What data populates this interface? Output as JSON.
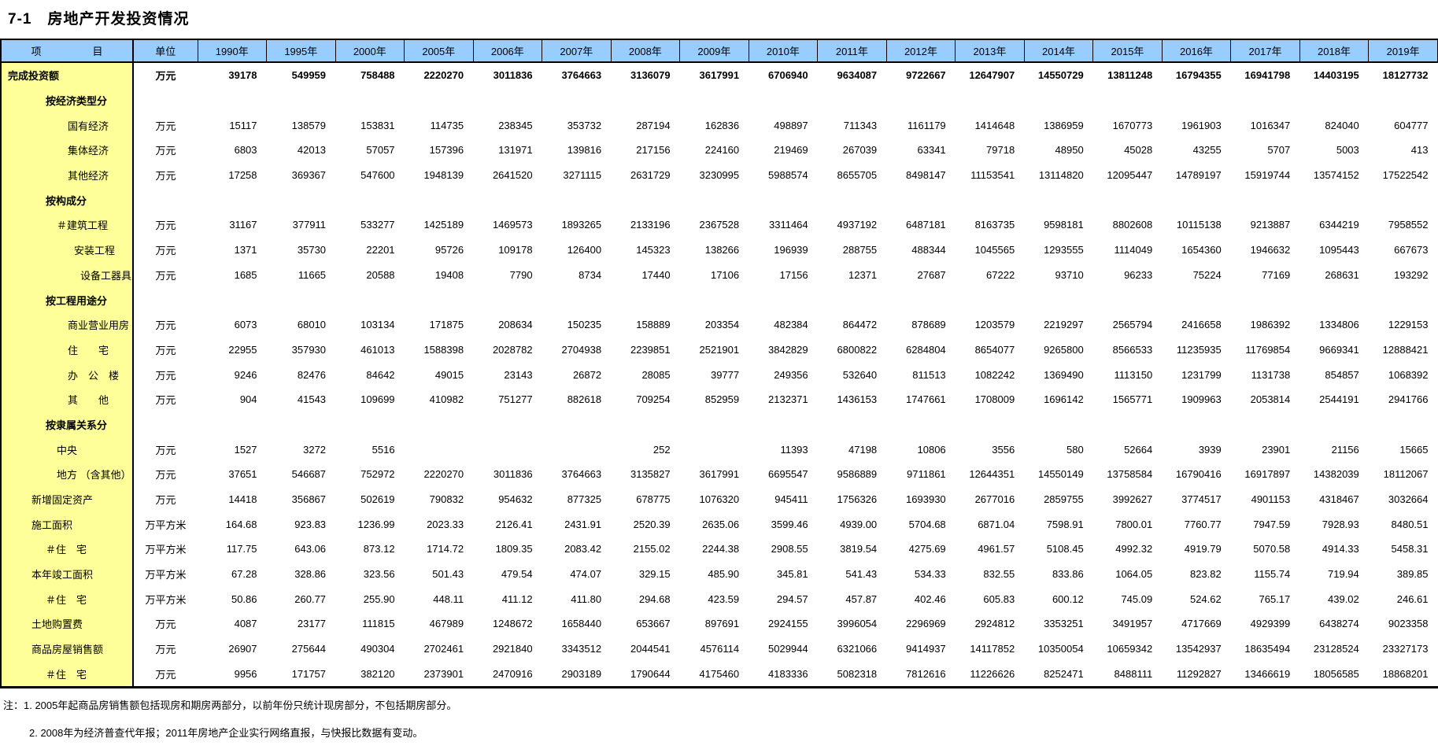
{
  "page": {
    "title": "7-1　房地产开发投资情况"
  },
  "colors": {
    "header_bg": "#99CCFF",
    "item_col_bg": "#FFFF99",
    "border": "#000000",
    "text": "#000000"
  },
  "table": {
    "header": {
      "item": "项　　　　　目",
      "unit": "单位",
      "years": [
        "1990年",
        "1995年",
        "2000年",
        "2005年",
        "2006年",
        "2007年",
        "2008年",
        "2009年",
        "2010年",
        "2011年",
        "2012年",
        "2013年",
        "2014年",
        "2015年",
        "2016年",
        "2017年",
        "2018年",
        "2019年"
      ]
    },
    "rows": [
      {
        "label": "完成投资额",
        "unit": "万元",
        "bold": true,
        "indent": 0,
        "values": [
          "39178",
          "549959",
          "758488",
          "2220270",
          "3011836",
          "3764663",
          "3136079",
          "3617991",
          "6706940",
          "9634087",
          "9722667",
          "12647907",
          "14550729",
          "13811248",
          "16794355",
          "16941798",
          "14403195",
          "18127732"
        ]
      },
      {
        "label": "按经济类型分",
        "unit": "",
        "bold": true,
        "indent": 2,
        "values": [
          "",
          "",
          "",
          "",
          "",
          "",
          "",
          "",
          "",
          "",
          "",
          "",
          "",
          "",
          "",
          "",
          "",
          ""
        ]
      },
      {
        "label": "国有经济",
        "unit": "万元",
        "bold": false,
        "indent": 4,
        "values": [
          "15117",
          "138579",
          "153831",
          "114735",
          "238345",
          "353732",
          "287194",
          "162836",
          "498897",
          "711343",
          "1161179",
          "1414648",
          "1386959",
          "1670773",
          "1961903",
          "1016347",
          "824040",
          "604777"
        ]
      },
      {
        "label": "集体经济",
        "unit": "万元",
        "bold": false,
        "indent": 4,
        "values": [
          "6803",
          "42013",
          "57057",
          "157396",
          "131971",
          "139816",
          "217156",
          "224160",
          "219469",
          "267039",
          "63341",
          "79718",
          "48950",
          "45028",
          "43255",
          "5707",
          "5003",
          "413"
        ]
      },
      {
        "label": "其他经济",
        "unit": "万元",
        "bold": false,
        "indent": 4,
        "values": [
          "17258",
          "369367",
          "547600",
          "1948139",
          "2641520",
          "3271115",
          "2631729",
          "3230995",
          "5988574",
          "8655705",
          "8498147",
          "11153541",
          "13114820",
          "12095447",
          "14789197",
          "15919744",
          "13574152",
          "17522542"
        ]
      },
      {
        "label": "按构成分",
        "unit": "",
        "bold": true,
        "indent": 2,
        "values": [
          "",
          "",
          "",
          "",
          "",
          "",
          "",
          "",
          "",
          "",
          "",
          "",
          "",
          "",
          "",
          "",
          "",
          ""
        ]
      },
      {
        "label": "＃建筑工程",
        "unit": "万元",
        "bold": false,
        "indent": 3,
        "values": [
          "31167",
          "377911",
          "533277",
          "1425189",
          "1469573",
          "1893265",
          "2133196",
          "2367528",
          "3311464",
          "4937192",
          "6487181",
          "8163735",
          "9598181",
          "8802608",
          "10115138",
          "9213887",
          "6344219",
          "7958552"
        ]
      },
      {
        "label": "安装工程",
        "unit": "万元",
        "bold": false,
        "indent": 5,
        "values": [
          "1371",
          "35730",
          "22201",
          "95726",
          "109178",
          "126400",
          "145323",
          "138266",
          "196939",
          "288755",
          "488344",
          "1045565",
          "1293555",
          "1114049",
          "1654360",
          "1946632",
          "1095443",
          "667673"
        ]
      },
      {
        "label": "设备工器具购置",
        "unit": "万元",
        "bold": false,
        "indent": 6,
        "values": [
          "1685",
          "11665",
          "20588",
          "19408",
          "7790",
          "8734",
          "17440",
          "17106",
          "17156",
          "12371",
          "27687",
          "67222",
          "93710",
          "96233",
          "75224",
          "77169",
          "268631",
          "193292"
        ]
      },
      {
        "label": "按工程用途分",
        "unit": "",
        "bold": true,
        "indent": 2,
        "values": [
          "",
          "",
          "",
          "",
          "",
          "",
          "",
          "",
          "",
          "",
          "",
          "",
          "",
          "",
          "",
          "",
          "",
          ""
        ]
      },
      {
        "label": "商业营业用房",
        "unit": "万元",
        "bold": false,
        "indent": 4,
        "values": [
          "6073",
          "68010",
          "103134",
          "171875",
          "208634",
          "150235",
          "158889",
          "203354",
          "482384",
          "864472",
          "878689",
          "1203579",
          "2219297",
          "2565794",
          "2416658",
          "1986392",
          "1334806",
          "1229153"
        ]
      },
      {
        "label": "住　　宅",
        "unit": "万元",
        "bold": false,
        "indent": 4,
        "values": [
          "22955",
          "357930",
          "461013",
          "1588398",
          "2028782",
          "2704938",
          "2239851",
          "2521901",
          "3842829",
          "6800822",
          "6284804",
          "8654077",
          "9265800",
          "8566533",
          "11235935",
          "11769854",
          "9669341",
          "12888421"
        ]
      },
      {
        "label": "办　公　楼",
        "unit": "万元",
        "bold": false,
        "indent": 4,
        "values": [
          "9246",
          "82476",
          "84642",
          "49015",
          "23143",
          "26872",
          "28085",
          "39777",
          "249356",
          "532640",
          "811513",
          "1082242",
          "1369490",
          "1113150",
          "1231799",
          "1131738",
          "854857",
          "1068392"
        ]
      },
      {
        "label": "其　　他",
        "unit": "万元",
        "bold": false,
        "indent": 4,
        "values": [
          "904",
          "41543",
          "109699",
          "410982",
          "751277",
          "882618",
          "709254",
          "852959",
          "2132371",
          "1436153",
          "1747661",
          "1708009",
          "1696142",
          "1565771",
          "1909963",
          "2053814",
          "2544191",
          "2941766"
        ]
      },
      {
        "label": "按隶属关系分",
        "unit": "",
        "bold": true,
        "indent": 2,
        "values": [
          "",
          "",
          "",
          "",
          "",
          "",
          "",
          "",
          "",
          "",
          "",
          "",
          "",
          "",
          "",
          "",
          "",
          ""
        ]
      },
      {
        "label": "中央",
        "unit": "万元",
        "bold": false,
        "indent": 3,
        "values": [
          "1527",
          "3272",
          "5516",
          "",
          "",
          "",
          "252",
          "",
          "11393",
          "47198",
          "10806",
          "3556",
          "580",
          "52664",
          "3939",
          "23901",
          "21156",
          "15665"
        ]
      },
      {
        "label": "地方 （含其他）",
        "unit": "万元",
        "bold": false,
        "indent": 3,
        "values": [
          "37651",
          "546687",
          "752972",
          "2220270",
          "3011836",
          "3764663",
          "3135827",
          "3617991",
          "6695547",
          "9586889",
          "9711861",
          "12644351",
          "14550149",
          "13758584",
          "16790416",
          "16917897",
          "14382039",
          "18112067"
        ]
      },
      {
        "label": "新增固定资产",
        "unit": "万元",
        "bold": false,
        "indent": 1,
        "values": [
          "14418",
          "356867",
          "502619",
          "790832",
          "954632",
          "877325",
          "678775",
          "1076320",
          "945411",
          "1756326",
          "1693930",
          "2677016",
          "2859755",
          "3992627",
          "3774517",
          "4901153",
          "4318467",
          "3032664"
        ]
      },
      {
        "label": "施工面积",
        "unit": "万平方米",
        "bold": false,
        "indent": 1,
        "values": [
          "164.68",
          "923.83",
          "1236.99",
          "2023.33",
          "2126.41",
          "2431.91",
          "2520.39",
          "2635.06",
          "3599.46",
          "4939.00",
          "5704.68",
          "6871.04",
          "7598.91",
          "7800.01",
          "7760.77",
          "7947.59",
          "7928.93",
          "8480.51"
        ]
      },
      {
        "label": "＃住　宅",
        "unit": "万平方米",
        "bold": false,
        "indent": 2,
        "values": [
          "117.75",
          "643.06",
          "873.12",
          "1714.72",
          "1809.35",
          "2083.42",
          "2155.02",
          "2244.38",
          "2908.55",
          "3819.54",
          "4275.69",
          "4961.57",
          "5108.45",
          "4992.32",
          "4919.79",
          "5070.58",
          "4914.33",
          "5458.31"
        ]
      },
      {
        "label": "本年竣工面积",
        "unit": "万平方米",
        "bold": false,
        "indent": 1,
        "values": [
          "67.28",
          "328.86",
          "323.56",
          "501.43",
          "479.54",
          "474.07",
          "329.15",
          "485.90",
          "345.81",
          "541.43",
          "534.33",
          "832.55",
          "833.86",
          "1064.05",
          "823.82",
          "1155.74",
          "719.94",
          "389.85"
        ]
      },
      {
        "label": "＃住　宅",
        "unit": "万平方米",
        "bold": false,
        "indent": 2,
        "values": [
          "50.86",
          "260.77",
          "255.90",
          "448.11",
          "411.12",
          "411.80",
          "294.68",
          "423.59",
          "294.57",
          "457.87",
          "402.46",
          "605.83",
          "600.12",
          "745.09",
          "524.62",
          "765.17",
          "439.02",
          "246.61"
        ]
      },
      {
        "label": "土地购置费",
        "unit": "万元",
        "bold": false,
        "indent": 1,
        "values": [
          "4087",
          "23177",
          "111815",
          "467989",
          "1248672",
          "1658440",
          "653667",
          "897691",
          "2924155",
          "3996054",
          "2296969",
          "2924812",
          "3353251",
          "3491957",
          "4717669",
          "4929399",
          "6438274",
          "9023358"
        ]
      },
      {
        "label": "商品房屋销售额",
        "unit": "万元",
        "bold": false,
        "indent": 1,
        "values": [
          "26907",
          "275644",
          "490304",
          "2702461",
          "2921840",
          "3343512",
          "2044541",
          "4576114",
          "5029944",
          "6321066",
          "9414937",
          "14117852",
          "10350054",
          "10659342",
          "13542937",
          "18635494",
          "23128524",
          "23327173"
        ]
      },
      {
        "label": "＃住　宅",
        "unit": "万元",
        "bold": false,
        "indent": 2,
        "values": [
          "9956",
          "171757",
          "382120",
          "2373901",
          "2470916",
          "2903189",
          "1790644",
          "4175460",
          "4183336",
          "5082318",
          "7812616",
          "11226626",
          "8252471",
          "8488111",
          "11292827",
          "13466619",
          "18056585",
          "18868201"
        ]
      }
    ]
  },
  "notes": [
    "注：1. 2005年起商品房销售额包括现房和期房两部分，以前年份只统计现房部分，不包括期房部分。",
    "2. 2008年为经济普查代年报；2011年房地产企业实行网络直报，与快报比数据有变动。"
  ]
}
